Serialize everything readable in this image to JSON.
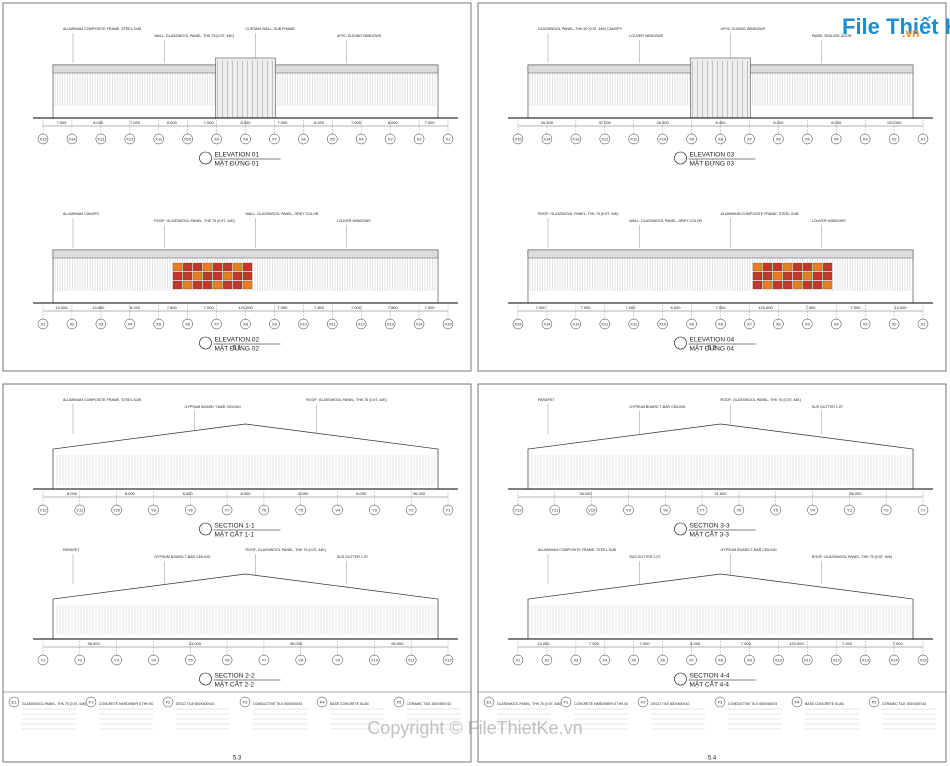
{
  "logo": {
    "text": "File Thiết Kế",
    "suffix": ".vn"
  },
  "watermark": "Copyright © FileThietKe.vn",
  "sheets": [
    {
      "number": "5.1",
      "views": [
        {
          "title": "ELEVATION 01",
          "subtitle": "MẶT ĐỨNG 01",
          "grid": [
            "X15",
            "X14",
            "X13",
            "X12",
            "X11",
            "X10",
            "X9",
            "X8",
            "X7",
            "X6",
            "X5",
            "X4",
            "X3",
            "X2",
            "X1"
          ],
          "dims": [
            "7.000",
            "8.000",
            "7.000",
            "8.000",
            "7.000",
            "8.000",
            "7.000",
            "8.000",
            "7.000",
            "8.000",
            "7.000"
          ],
          "notes": [
            "ALUMINIUM COMPOSITE FRAME, STEEL SUB",
            "WALL: GLASSWOOL PANEL, THK 75 (0.5T, 44K)",
            "CURTAIN WALL, SUB FRAME",
            "UPVC SLIDING WINDOWS"
          ]
        },
        {
          "title": "ELEVATION 02",
          "subtitle": "MẶT ĐỨNG 02",
          "grid": [
            "X1",
            "X2",
            "X3",
            "X4",
            "X5",
            "X6",
            "X7",
            "X8",
            "X9",
            "X10",
            "X11",
            "X12",
            "X13",
            "X14",
            "X15"
          ],
          "dims": [
            "13.000",
            "13.800",
            "8.200",
            "7.800",
            "7.000",
            "120.000",
            "7.000",
            "7.800",
            "7.000",
            "7.800",
            "7.000"
          ],
          "notes": [
            "ALUMINIUM CANOPY",
            "ROOF: GLASSWOOL PANEL, THK 75 (0.5T, 44K)",
            "WALL: GLASSWOOL PANEL, GREY COLOR",
            "LOUVER WINDOWS"
          ]
        }
      ]
    },
    {
      "number": "5.2",
      "views": [
        {
          "title": "ELEVATION 03",
          "subtitle": "MẶT ĐỨNG 03",
          "grid": [
            "X15",
            "X14",
            "X13",
            "X12",
            "X11",
            "X10",
            "X9",
            "X8",
            "X7",
            "X6",
            "X5",
            "X4",
            "X3",
            "X2",
            "X1"
          ],
          "dims": [
            "26.400",
            "37.000",
            "26.400",
            "8.400",
            "8.000",
            "6.000",
            "120.000"
          ],
          "notes": [
            "GLASSWOOL PANEL, THK 50 (0.5T, 44K) CANOPY",
            "LOUVER WINDOWS",
            "UPVC SLIDING WINDOWS",
            "PANEL SEALING DOOR"
          ]
        },
        {
          "title": "ELEVATION 04",
          "subtitle": "MẶT ĐỨNG 04",
          "grid": [
            "X15",
            "X14",
            "X13",
            "X12",
            "X11",
            "X10",
            "X9",
            "X8",
            "X7",
            "X6",
            "X5",
            "X4",
            "X3",
            "X2",
            "X1"
          ],
          "dims": [
            "7.000",
            "7.000",
            "7.000",
            "8.000",
            "7.000",
            "120.000",
            "7.000",
            "7.000",
            "13.000"
          ],
          "notes": [
            "ROOF: GLASSWOOL PANEL, THK 75 (0.5T, 44K)",
            "WALL: GLASSWOOL PANEL, GREY COLOR",
            "ALUMINIUM COMPOSITE FRAME, STEEL SUB",
            "LOUVER WINDOWS"
          ]
        }
      ]
    },
    {
      "number": "5.3",
      "views": [
        {
          "title": "SECTION 1-1",
          "subtitle": "MẶT CẮT 1-1",
          "grid": [
            "Y12",
            "Y11",
            "Y10",
            "Y9",
            "Y8",
            "Y7",
            "Y6",
            "Y5",
            "Y4",
            "Y3",
            "Y2",
            "Y1"
          ],
          "dims": [
            "8.000",
            "8.000",
            "8.000",
            "8.000",
            "8.000",
            "8.000",
            "96.000"
          ],
          "notes": [
            "ALUMINIUM COMPOSITE FRAME, STEEL SUB",
            "GYPSUM BOARD T-BAR CEILING",
            "ROOF: GLASSWOOL PANEL, THK 75 (0.5T, 44K)"
          ]
        },
        {
          "title": "SECTION 2-2",
          "subtitle": "MẶT CẮT 2-2",
          "grid": [
            "Y1",
            "Y2",
            "Y3",
            "Y4",
            "Y5",
            "Y6",
            "Y7",
            "Y8",
            "Y9",
            "Y10",
            "Y11",
            "Y12"
          ],
          "dims": [
            "36.000",
            "24.000",
            "36.000",
            "96.000"
          ],
          "notes": [
            "PARAPET",
            "GYPSUM BOARD T-BAR CEILING",
            "ROOF: GLASSWOOL PANEL, THK 75 (0.5T, 44K)",
            "SUS GUTTER 1.0T"
          ]
        }
      ],
      "legend": [
        {
          "code": "E1",
          "text": "GLASSWOOL PANEL, THK 75 (0.5T, 44K)"
        },
        {
          "code": "F1",
          "text": "CONCRETE HARDENER 6 THK 50"
        },
        {
          "code": "F2",
          "text": "DECO TILE 600X600X10"
        },
        {
          "code": "F3",
          "text": "CONDUCTIVE TILE 600X600X3"
        },
        {
          "code": "F4",
          "text": "BASE CONCRETE SLAB"
        },
        {
          "code": "F5",
          "text": "CERAMIC TILE 300X300X10"
        }
      ]
    },
    {
      "number": "5.4",
      "views": [
        {
          "title": "SECTION 3-3",
          "subtitle": "MẶT CẮT 3-3",
          "grid": [
            "Y12",
            "Y11",
            "Y10",
            "Y9",
            "Y8",
            "Y7",
            "Y6",
            "Y5",
            "Y4",
            "Y3",
            "Y2",
            "Y1"
          ],
          "dims": [
            "36.000",
            "21.600",
            "36.000"
          ],
          "notes": [
            "PARAPET",
            "GYPSUM BOARD T-BAR CEILING",
            "ROOF: GLASSWOOL PANEL, THK 75 (0.5T, 44K)",
            "SUS GUTTER 1.0T"
          ]
        },
        {
          "title": "SECTION 4-4",
          "subtitle": "MẶT CẮT 4-4",
          "grid": [
            "X1",
            "X2",
            "X3",
            "X4",
            "X5",
            "X6",
            "X7",
            "X8",
            "X9",
            "X10",
            "X11",
            "X12",
            "X13",
            "X14",
            "X15"
          ],
          "dims": [
            "13.000",
            "7.000",
            "7.000",
            "8.000",
            "7.000",
            "120.000",
            "7.000",
            "7.000"
          ],
          "notes": [
            "ALUMINIUM COMPOSITE FRAME, STEEL SUB",
            "SUS GUTTER 1.0T",
            "GYPSUM BOARD T-BAR CEILING",
            "ROOF: GLASSWOOL PANEL, THK 75 (0.5T, 44K)"
          ]
        }
      ],
      "legend": [
        {
          "code": "E1",
          "text": "GLASSWOOL PANEL, THK 75 (0.5T, 44K)"
        },
        {
          "code": "F1",
          "text": "CONCRETE HARDENER 6 THK 50"
        },
        {
          "code": "F2",
          "text": "DECO TILE 600X600X10"
        },
        {
          "code": "F3",
          "text": "CONDUCTIVE TILE 600X600X3"
        },
        {
          "code": "F4",
          "text": "BASE CONCRETE SLAB"
        },
        {
          "code": "F5",
          "text": "CERAMIC TILE 300X300X10"
        }
      ]
    }
  ]
}
